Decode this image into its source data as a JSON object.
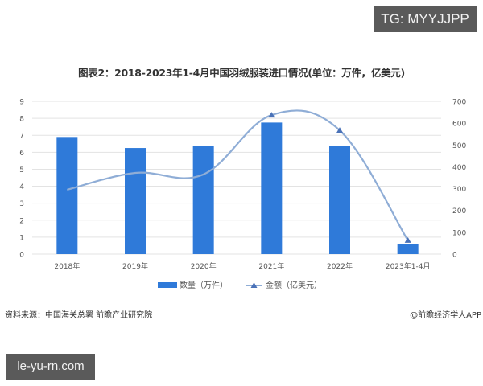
{
  "watermarks": {
    "top_right": "TG: MYYJJPP",
    "bottom_left": "le-yu-rn.com"
  },
  "footer": {
    "source": "资料来源：中国海关总署 前瞻产业研究院",
    "credit": "@前瞻经济学人APP"
  },
  "chart_data": {
    "type": "bar",
    "title": "图表2：2018-2023年1-4月中国羽绒服装进口情况(单位：万件，亿美元)",
    "categories": [
      "2018年",
      "2019年",
      "2020年",
      "2021年",
      "2022年",
      "2023年1-4月"
    ],
    "series": [
      {
        "name": "数量（万件）",
        "type": "bar",
        "axis": "left",
        "color": "#2f7ad9",
        "values": [
          6.9,
          6.25,
          6.35,
          7.75,
          6.35,
          0.6
        ]
      },
      {
        "name": "金额（亿美元）",
        "type": "line",
        "axis": "right",
        "color": "#8fadd6",
        "marker": "triangle",
        "values": [
          295,
          372,
          365,
          637,
          567,
          63
        ]
      }
    ],
    "left_axis": {
      "ylim": [
        0,
        9
      ],
      "ticks": [
        "0",
        "1",
        "2",
        "3",
        "4",
        "5",
        "6",
        "7",
        "8",
        "9"
      ]
    },
    "right_axis": {
      "ylim": [
        0,
        700
      ],
      "ticks": [
        "0",
        "100",
        "200",
        "300",
        "400",
        "500",
        "600",
        "700"
      ]
    },
    "xlabel": "",
    "ylabel": "",
    "grid": true,
    "legend_position": "bottom"
  }
}
